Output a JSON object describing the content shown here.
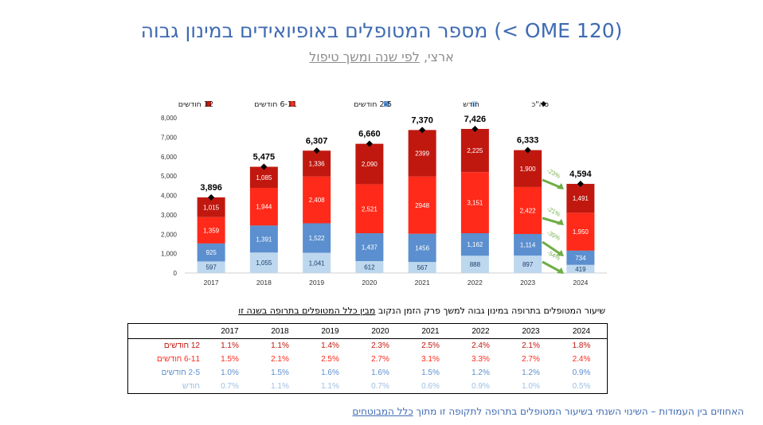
{
  "header": {
    "title": "מספר המטופלים באופיואידים במינון גבוה (< OME 120)",
    "subtitle_prefix": "ארצי,",
    "subtitle_link": "לפי שנה ומשך טיפול"
  },
  "chart_data": {
    "type": "bar",
    "stacked": true,
    "categories": [
      "2017",
      "2018",
      "2019",
      "2020",
      "2021",
      "2022",
      "2023",
      "2024"
    ],
    "ylim": [
      0,
      8000
    ],
    "yticks": [
      "0",
      "1,000",
      "2,000",
      "3,000",
      "4,000",
      "5,000",
      "6,000",
      "7,000",
      "8,000"
    ],
    "series": [
      {
        "name": "חודש",
        "color": "#bdd7ee",
        "values": [
          597,
          1055,
          1041,
          612,
          567,
          888,
          897,
          419
        ],
        "labels": [
          "597",
          "1,055",
          "1,041",
          "612",
          "567",
          "888",
          "897",
          "419"
        ]
      },
      {
        "name": "2-5 חודשים",
        "color": "#5b8fcf",
        "values": [
          925,
          1391,
          1522,
          1437,
          1456,
          1162,
          1114,
          734
        ],
        "labels": [
          "925",
          "1,391",
          "1,522",
          "1,437",
          "1456",
          "1,162",
          "1,114",
          "734"
        ]
      },
      {
        "name": "6-11 חודשים",
        "color": "#ff2a1a",
        "values": [
          1359,
          1944,
          2408,
          2521,
          2948,
          3151,
          2422,
          1950
        ],
        "labels": [
          "1,359",
          "1,944",
          "2,408",
          "2,521",
          "2948",
          "3,151",
          "2,422",
          "1,950"
        ]
      },
      {
        "name": "12 חודשים",
        "color": "#c0180f",
        "values": [
          1015,
          1085,
          1336,
          2090,
          2399,
          2225,
          1900,
          1491
        ],
        "labels": [
          "1,015",
          "1,085",
          "1,336",
          "2,090",
          "2399",
          "2,225",
          "1,900",
          "1,491"
        ]
      }
    ],
    "totals": {
      "name": "סה\"כ",
      "values": [
        3896,
        5475,
        6307,
        6660,
        7370,
        7426,
        6333,
        4594
      ],
      "labels": [
        "3,896",
        "5,475",
        "6,307",
        "6,660",
        "7,370",
        "7,426",
        "6,333",
        "4,594"
      ]
    },
    "legend_position": "top",
    "annotations": [
      "-23%",
      "-21%",
      "-35%",
      "-54%"
    ]
  },
  "table": {
    "caption_prefix": "שיעור המטופלים בתרופה במינון גבוה למשך פרק הזמן הנקוב",
    "caption_link": "מבין כלל המטופלים בתרופה בשנה זו",
    "years": [
      "2017",
      "2018",
      "2019",
      "2020",
      "2021",
      "2022",
      "2023",
      "2024"
    ],
    "rows": [
      {
        "label": "12 חודשים",
        "color": "#c0180f",
        "values": [
          "1.1%",
          "1.1%",
          "1.4%",
          "2.3%",
          "2.5%",
          "2.4%",
          "2.1%",
          "1.8%"
        ]
      },
      {
        "label": "6-11 חודשים",
        "color": "#ff2a1a",
        "values": [
          "1.5%",
          "2.1%",
          "2.5%",
          "2.7%",
          "3.1%",
          "3.3%",
          "2.7%",
          "2.4%"
        ]
      },
      {
        "label": "2-5 חודשים",
        "color": "#5b8fcf",
        "values": [
          "1.0%",
          "1.5%",
          "1.6%",
          "1.6%",
          "1.5%",
          "1.2%",
          "1.2%",
          "0.9%"
        ]
      },
      {
        "label": "חודש",
        "color": "#9dbfe3",
        "values": [
          "0.7%",
          "1.1%",
          "1.1%",
          "0.7%",
          "0.6%",
          "0.9%",
          "1.0%",
          "0.5%"
        ]
      }
    ]
  },
  "footnote": {
    "text": "האחוזים בין העמודות – השינוי השנתי בשיעור המטופלים בתרופה לתקופה זו מתוך",
    "link": "כלל המבוטחים"
  }
}
